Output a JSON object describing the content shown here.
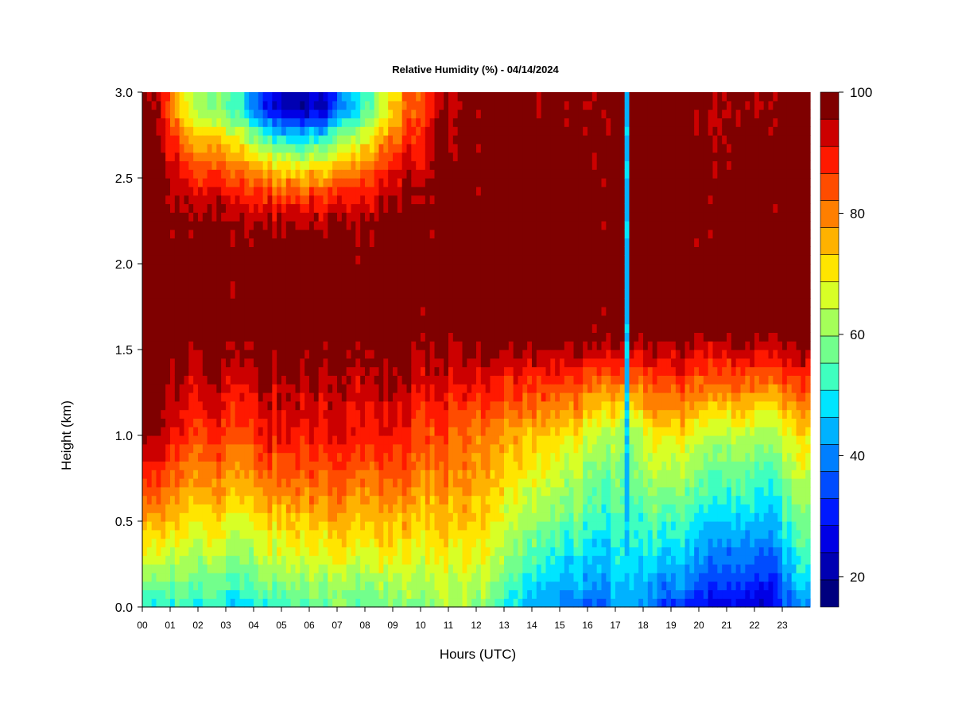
{
  "chart_data": {
    "type": "heatmap",
    "title": "Relative Humidity (%) - 04/14/2024",
    "xlabel": "Hours (UTC)",
    "ylabel": "Height (km)",
    "xlim": [
      0,
      24
    ],
    "ylim": [
      0,
      3
    ],
    "x_ticks": [
      "00",
      "01",
      "02",
      "03",
      "04",
      "05",
      "06",
      "07",
      "08",
      "09",
      "10",
      "11",
      "12",
      "13",
      "14",
      "15",
      "16",
      "17",
      "18",
      "19",
      "20",
      "21",
      "22",
      "23"
    ],
    "y_ticks": [
      "0.0",
      "0.5",
      "1.0",
      "1.5",
      "2.0",
      "2.5",
      "3.0"
    ],
    "y_tick_values": [
      0,
      0.5,
      1.0,
      1.5,
      2.0,
      2.5,
      3.0
    ],
    "colorbar": {
      "min": 15,
      "max": 100,
      "labels": [
        "20",
        "40",
        "60",
        "80",
        "100"
      ],
      "label_values": [
        20,
        40,
        60,
        80,
        100
      ],
      "colors": [
        "#00007f",
        "#0000b2",
        "#0000e5",
        "#0019ff",
        "#004cff",
        "#007fff",
        "#00b2ff",
        "#00e5ff",
        "#3fffbf",
        "#72ff8c",
        "#a5ff59",
        "#d8ff26",
        "#ffe500",
        "#ffb200",
        "#ff7f00",
        "#ff4c00",
        "#ff1900",
        "#cc0000",
        "#7f0000"
      ]
    },
    "x_hours": [
      0,
      1,
      2,
      3,
      4,
      5,
      6,
      7,
      8,
      9,
      10,
      11,
      12,
      13,
      14,
      15,
      16,
      17,
      18,
      19,
      20,
      21,
      22,
      23
    ],
    "surface_rh_percent": [
      50,
      52,
      50,
      48,
      50,
      52,
      55,
      56,
      56,
      57,
      60,
      62,
      58,
      45,
      40,
      38,
      38,
      45,
      35,
      33,
      28,
      25,
      24,
      40
    ],
    "rh_1km_percent": [
      98,
      88,
      86,
      86,
      90,
      90,
      90,
      90,
      90,
      88,
      85,
      83,
      80,
      75,
      72,
      70,
      65,
      60,
      70,
      70,
      65,
      65,
      62,
      70
    ],
    "rh_2_9km_percent": [
      98,
      70,
      58,
      55,
      28,
      20,
      25,
      45,
      62,
      80,
      92,
      98,
      100,
      99,
      97,
      99,
      98,
      100,
      100,
      100,
      98,
      96,
      99,
      100
    ],
    "dry_column_hour": 17.4,
    "dry_column_rh_percent": 45
  }
}
